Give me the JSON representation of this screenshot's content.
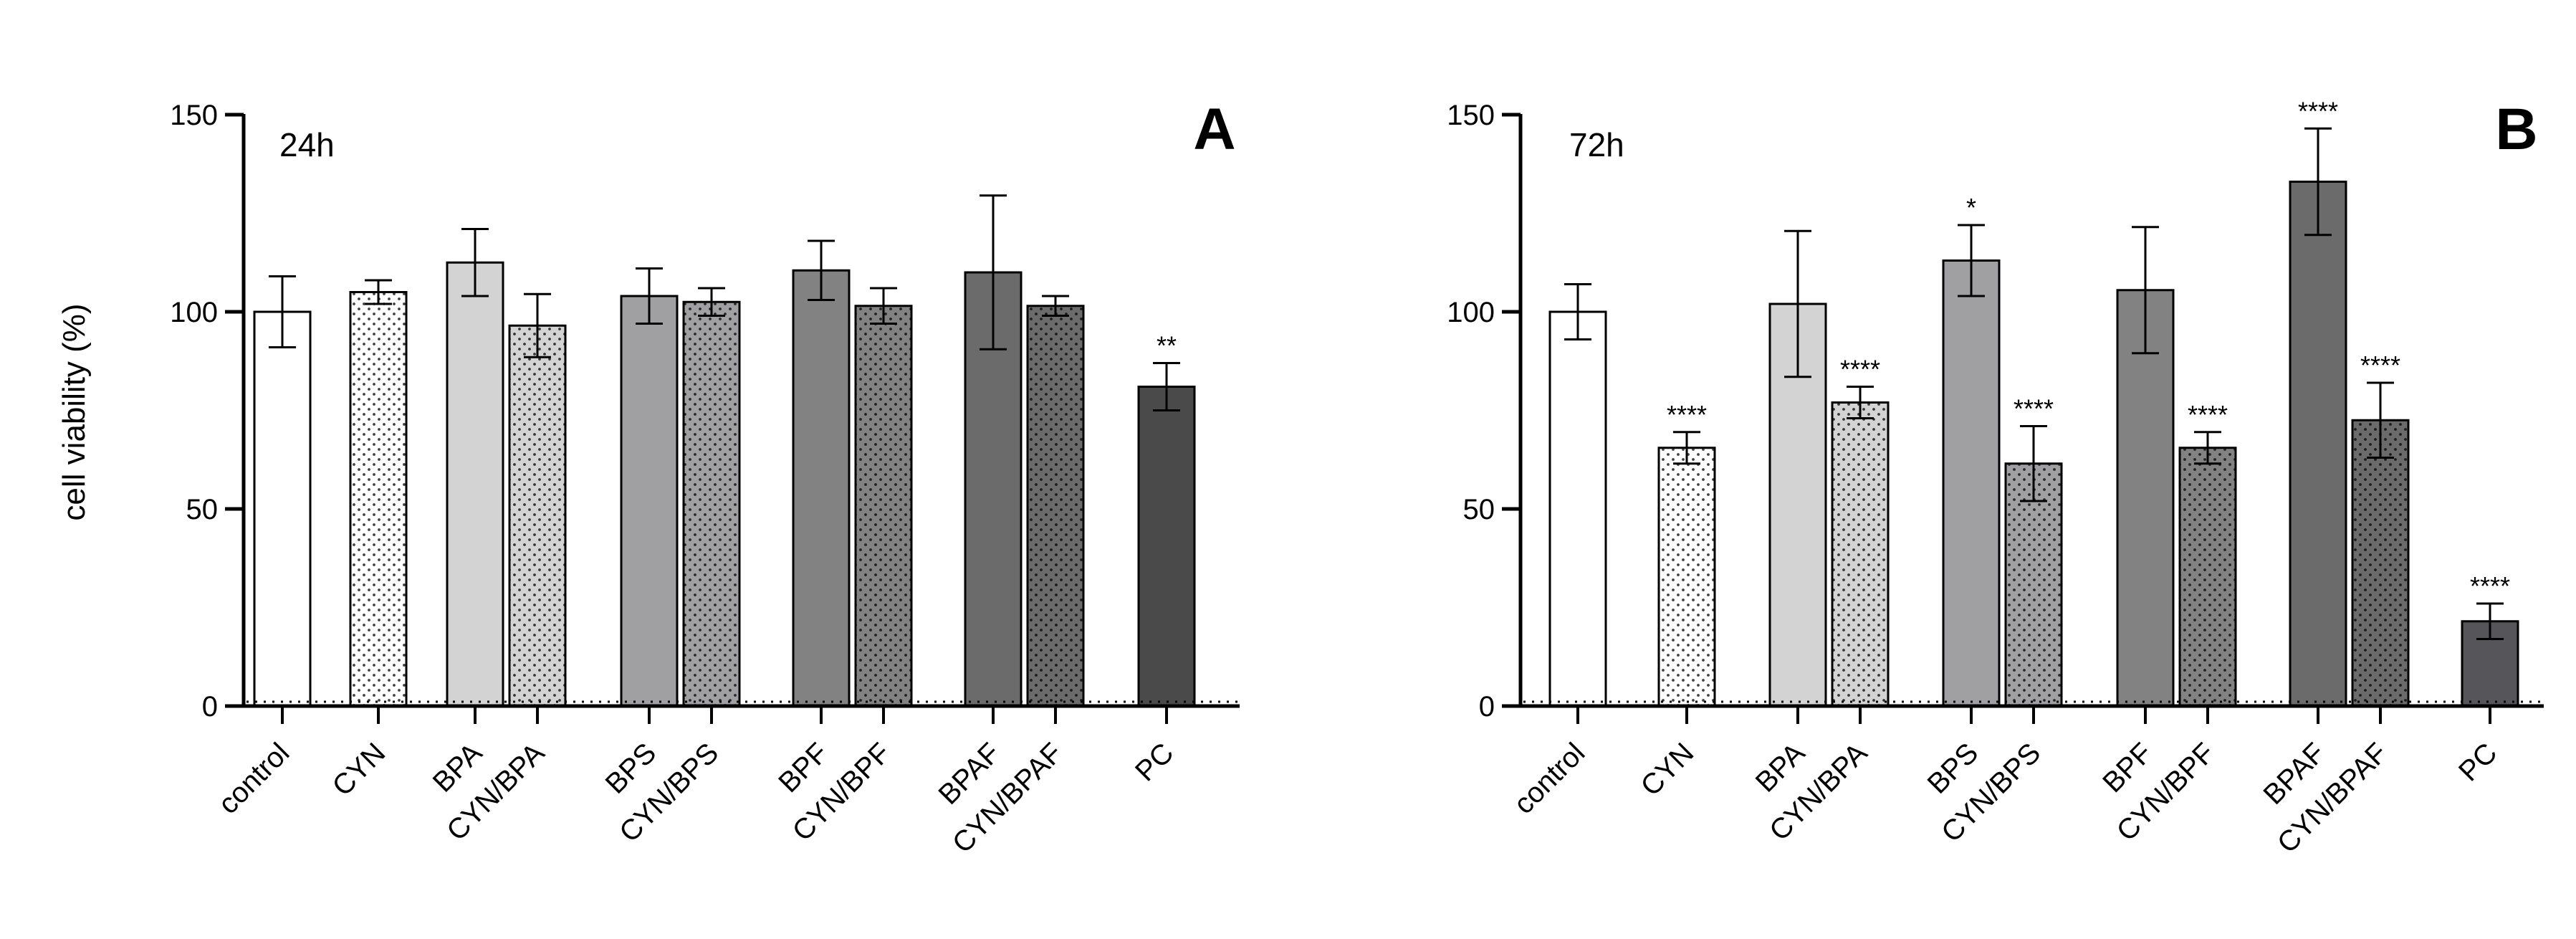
{
  "shared": {
    "ylabel": "cell viability (%)"
  },
  "chart_data": [
    {
      "type": "bar",
      "panel_label": "A",
      "time_label": "24h",
      "ylabel": "cell viability (%)",
      "ylim": [
        0,
        150
      ],
      "yticks": [
        0,
        50,
        100,
        150
      ],
      "bars": [
        {
          "label": "control",
          "value": 100,
          "err": 9,
          "sig": "",
          "fill": "#ffffff",
          "pattern": "none",
          "group": 0
        },
        {
          "label": "CYN",
          "value": 105,
          "err": 3,
          "sig": "",
          "fill": "#ffffff",
          "pattern": "dots",
          "group": 1
        },
        {
          "label": "BPA",
          "value": 112.5,
          "err": 8.5,
          "sig": "",
          "fill": "#d3d3d3",
          "pattern": "none",
          "group": 2
        },
        {
          "label": "CYN/BPA",
          "value": 96.5,
          "err": 8,
          "sig": "",
          "fill": "#d3d3d3",
          "pattern": "dots",
          "group": 2
        },
        {
          "label": "BPS",
          "value": 104,
          "err": 7,
          "sig": "",
          "fill": "#a0a0a3",
          "pattern": "none",
          "group": 3
        },
        {
          "label": "CYN/BPS",
          "value": 102.5,
          "err": 3.5,
          "sig": "",
          "fill": "#a0a0a3",
          "pattern": "dots",
          "group": 3
        },
        {
          "label": "BPF",
          "value": 110.5,
          "err": 7.5,
          "sig": "",
          "fill": "#828282",
          "pattern": "none",
          "group": 4
        },
        {
          "label": "CYN/BPF",
          "value": 101.5,
          "err": 4.5,
          "sig": "",
          "fill": "#828282",
          "pattern": "dots",
          "group": 4
        },
        {
          "label": "BPAF",
          "value": 110,
          "err": 19.5,
          "sig": "",
          "fill": "#6b6b6b",
          "pattern": "none",
          "group": 5
        },
        {
          "label": "CYN/BPAF",
          "value": 101.5,
          "err": 2.5,
          "sig": "",
          "fill": "#6b6b6b",
          "pattern": "dots",
          "group": 5
        },
        {
          "label": "PC",
          "value": 81,
          "err": 6,
          "sig": "**",
          "fill": "#4a4a4a",
          "pattern": "none",
          "group": 6
        }
      ]
    },
    {
      "type": "bar",
      "panel_label": "B",
      "time_label": "72h",
      "ylabel": "",
      "ylim": [
        0,
        150
      ],
      "yticks": [
        0,
        50,
        100,
        150
      ],
      "bars": [
        {
          "label": "control",
          "value": 100,
          "err": 7,
          "sig": "",
          "fill": "#ffffff",
          "pattern": "none",
          "group": 0
        },
        {
          "label": "CYN",
          "value": 65.5,
          "err": 4,
          "sig": "****",
          "fill": "#ffffff",
          "pattern": "dots",
          "group": 1
        },
        {
          "label": "BPA",
          "value": 102,
          "err": 18.5,
          "sig": "",
          "fill": "#d3d3d3",
          "pattern": "none",
          "group": 2
        },
        {
          "label": "CYN/BPA",
          "value": 77,
          "err": 4,
          "sig": "****",
          "fill": "#d3d3d3",
          "pattern": "dots",
          "group": 2
        },
        {
          "label": "BPS",
          "value": 113,
          "err": 9,
          "sig": "*",
          "fill": "#a0a0a3",
          "pattern": "none",
          "group": 3
        },
        {
          "label": "CYN/BPS",
          "value": 61.5,
          "err": 9.5,
          "sig": "****",
          "fill": "#a0a0a3",
          "pattern": "dots",
          "group": 3
        },
        {
          "label": "BPF",
          "value": 105.5,
          "err": 16,
          "sig": "",
          "fill": "#828282",
          "pattern": "none",
          "group": 4
        },
        {
          "label": "CYN/BPF",
          "value": 65.5,
          "err": 4,
          "sig": "****",
          "fill": "#828282",
          "pattern": "dots",
          "group": 4
        },
        {
          "label": "BPAF",
          "value": 133,
          "err": 13.5,
          "sig": "****",
          "fill": "#6b6b6b",
          "pattern": "none",
          "group": 5
        },
        {
          "label": "CYN/BPAF",
          "value": 72.5,
          "err": 9.5,
          "sig": "****",
          "fill": "#6b6b6b",
          "pattern": "dots",
          "group": 5
        },
        {
          "label": "PC",
          "value": 21.5,
          "err": 4.5,
          "sig": "****",
          "fill": "#55555a",
          "pattern": "none",
          "group": 6
        }
      ]
    }
  ]
}
